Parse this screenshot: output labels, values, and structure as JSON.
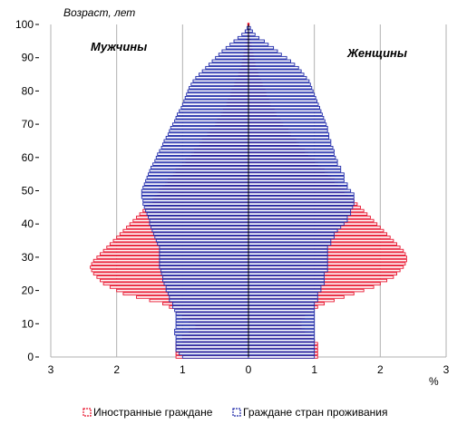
{
  "chart_data": {
    "type": "population-pyramid",
    "title": "",
    "y_annotation": "Возраст, лет",
    "x_unit": "%",
    "left_label": "Мужчины",
    "right_label": "Женщины",
    "x_ticks": [
      "3",
      "2",
      "1",
      "0",
      "1",
      "2",
      "3"
    ],
    "x_tick_values": [
      -3,
      -2,
      -1,
      0,
      1,
      2,
      3
    ],
    "y_ticks": [
      0,
      10,
      20,
      30,
      40,
      50,
      60,
      70,
      80,
      90,
      100
    ],
    "xlim": [
      -3,
      3
    ],
    "ylim": [
      0,
      100
    ],
    "grid": true,
    "legend_position": "bottom",
    "colors": {
      "foreign": "#e8102a",
      "citizens": "#1b26a8"
    },
    "ages": [
      0,
      1,
      2,
      3,
      4,
      5,
      6,
      7,
      8,
      9,
      10,
      11,
      12,
      13,
      14,
      15,
      16,
      17,
      18,
      19,
      20,
      21,
      22,
      23,
      24,
      25,
      26,
      27,
      28,
      29,
      30,
      31,
      32,
      33,
      34,
      35,
      36,
      37,
      38,
      39,
      40,
      41,
      42,
      43,
      44,
      45,
      46,
      47,
      48,
      49,
      50,
      51,
      52,
      53,
      54,
      55,
      56,
      57,
      58,
      59,
      60,
      61,
      62,
      63,
      64,
      65,
      66,
      67,
      68,
      69,
      70,
      71,
      72,
      73,
      74,
      75,
      76,
      77,
      78,
      79,
      80,
      81,
      82,
      83,
      84,
      85,
      86,
      87,
      88,
      89,
      90,
      91,
      92,
      93,
      94,
      95,
      96,
      97,
      98,
      99,
      100
    ],
    "series": [
      {
        "name": "Иностранные граждане",
        "key": "foreign",
        "male": [
          1.1,
          1.1,
          1.1,
          1.1,
          1.1,
          1.0,
          1.0,
          0.9,
          0.9,
          0.8,
          0.8,
          0.9,
          1.0,
          1.0,
          1.1,
          1.2,
          1.3,
          1.5,
          1.7,
          1.9,
          2.0,
          2.1,
          2.2,
          2.25,
          2.3,
          2.35,
          2.38,
          2.4,
          2.38,
          2.35,
          2.3,
          2.25,
          2.2,
          2.15,
          2.1,
          2.05,
          2.0,
          1.95,
          1.9,
          1.85,
          1.8,
          1.75,
          1.7,
          1.65,
          1.6,
          1.55,
          1.5,
          1.45,
          1.42,
          1.38,
          1.35,
          1.3,
          1.26,
          1.22,
          1.18,
          1.14,
          1.1,
          1.05,
          1.0,
          0.95,
          0.9,
          0.86,
          0.82,
          0.78,
          0.74,
          0.7,
          0.66,
          0.62,
          0.58,
          0.54,
          0.5,
          0.47,
          0.44,
          0.41,
          0.38,
          0.35,
          0.33,
          0.31,
          0.29,
          0.27,
          0.25,
          0.23,
          0.21,
          0.19,
          0.17,
          0.15,
          0.13,
          0.11,
          0.1,
          0.09,
          0.08,
          0.07,
          0.06,
          0.05,
          0.04,
          0.03,
          0.03,
          0.02,
          0.02,
          0.01,
          0.01
        ],
        "female": [
          1.05,
          1.05,
          1.05,
          1.05,
          1.05,
          1.0,
          0.95,
          0.9,
          0.85,
          0.8,
          0.75,
          0.8,
          0.85,
          0.9,
          0.95,
          1.05,
          1.15,
          1.3,
          1.45,
          1.6,
          1.75,
          1.9,
          2.0,
          2.1,
          2.2,
          2.25,
          2.3,
          2.35,
          2.38,
          2.4,
          2.4,
          2.38,
          2.35,
          2.3,
          2.25,
          2.2,
          2.15,
          2.1,
          2.05,
          2.0,
          1.95,
          1.9,
          1.85,
          1.8,
          1.75,
          1.7,
          1.65,
          1.6,
          1.55,
          1.5,
          1.45,
          1.4,
          1.35,
          1.3,
          1.25,
          1.2,
          1.15,
          1.1,
          1.05,
          1.0,
          0.95,
          0.9,
          0.85,
          0.8,
          0.76,
          0.72,
          0.68,
          0.64,
          0.6,
          0.56,
          0.52,
          0.48,
          0.45,
          0.42,
          0.39,
          0.36,
          0.33,
          0.31,
          0.29,
          0.27,
          0.25,
          0.23,
          0.21,
          0.19,
          0.17,
          0.15,
          0.13,
          0.11,
          0.1,
          0.09,
          0.08,
          0.07,
          0.06,
          0.05,
          0.04,
          0.03,
          0.03,
          0.02,
          0.02,
          0.01,
          0.01
        ]
      },
      {
        "name": "Граждане стран проживания",
        "key": "citizens",
        "male": [
          1.0,
          1.05,
          1.1,
          1.1,
          1.1,
          1.1,
          1.1,
          1.12,
          1.12,
          1.1,
          1.1,
          1.1,
          1.1,
          1.1,
          1.12,
          1.15,
          1.15,
          1.2,
          1.2,
          1.22,
          1.25,
          1.25,
          1.28,
          1.3,
          1.3,
          1.32,
          1.33,
          1.35,
          1.35,
          1.35,
          1.35,
          1.35,
          1.35,
          1.35,
          1.38,
          1.4,
          1.42,
          1.44,
          1.46,
          1.48,
          1.5,
          1.5,
          1.52,
          1.54,
          1.56,
          1.58,
          1.6,
          1.6,
          1.62,
          1.62,
          1.62,
          1.6,
          1.58,
          1.56,
          1.54,
          1.52,
          1.5,
          1.48,
          1.45,
          1.42,
          1.4,
          1.38,
          1.35,
          1.32,
          1.3,
          1.28,
          1.25,
          1.22,
          1.2,
          1.18,
          1.15,
          1.12,
          1.1,
          1.08,
          1.05,
          1.02,
          1.0,
          0.98,
          0.96,
          0.94,
          0.92,
          0.9,
          0.87,
          0.84,
          0.8,
          0.75,
          0.7,
          0.65,
          0.6,
          0.55,
          0.5,
          0.45,
          0.4,
          0.34,
          0.28,
          0.22,
          0.16,
          0.1,
          0.05,
          0.02,
          0.0
        ],
        "female": [
          1.0,
          1.0,
          1.0,
          1.0,
          1.0,
          1.0,
          1.0,
          1.0,
          1.0,
          1.0,
          1.0,
          1.0,
          1.0,
          1.0,
          1.0,
          1.0,
          1.0,
          1.05,
          1.05,
          1.05,
          1.1,
          1.1,
          1.15,
          1.15,
          1.15,
          1.15,
          1.2,
          1.2,
          1.2,
          1.2,
          1.2,
          1.2,
          1.2,
          1.2,
          1.25,
          1.25,
          1.3,
          1.3,
          1.35,
          1.4,
          1.45,
          1.5,
          1.5,
          1.55,
          1.55,
          1.58,
          1.6,
          1.6,
          1.6,
          1.6,
          1.55,
          1.5,
          1.5,
          1.45,
          1.45,
          1.45,
          1.4,
          1.4,
          1.35,
          1.35,
          1.32,
          1.3,
          1.3,
          1.28,
          1.25,
          1.25,
          1.22,
          1.22,
          1.2,
          1.2,
          1.18,
          1.16,
          1.14,
          1.12,
          1.1,
          1.08,
          1.06,
          1.04,
          1.02,
          1.0,
          0.98,
          0.96,
          0.94,
          0.92,
          0.88,
          0.84,
          0.8,
          0.76,
          0.7,
          0.64,
          0.58,
          0.5,
          0.44,
          0.38,
          0.3,
          0.24,
          0.16,
          0.1,
          0.06,
          0.03,
          0.0
        ]
      }
    ]
  }
}
